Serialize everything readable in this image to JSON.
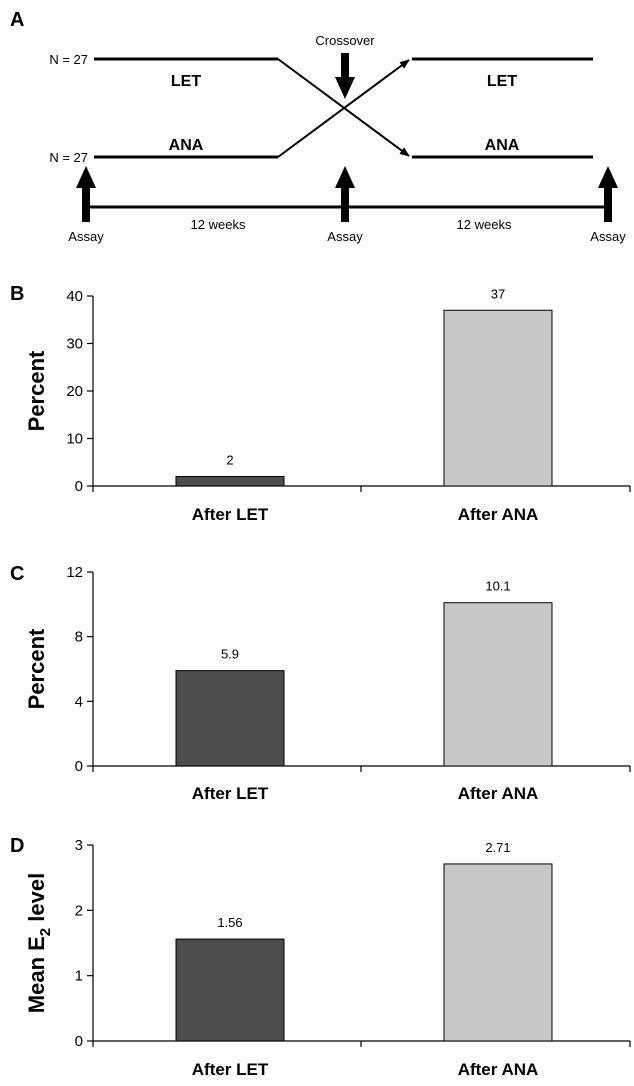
{
  "panel_a": {
    "letter": "A",
    "crossover_label": "Crossover",
    "n_top": "N = 27",
    "n_bottom": "N = 27",
    "arm_top_before": "LET",
    "arm_bottom_before": "ANA",
    "arm_top_after": "LET",
    "arm_bottom_after": "ANA",
    "period_1": "12 weeks",
    "period_2": "12 weeks",
    "assay_labels": [
      "Assay",
      "Assay",
      "Assay"
    ]
  },
  "chart_data": [
    {
      "panel": "B",
      "type": "bar",
      "categories": [
        "After LET",
        "After ANA"
      ],
      "values": [
        2,
        37
      ],
      "value_labels": [
        "2",
        "37"
      ],
      "ylabel": "Percent",
      "ylabel_sub": "",
      "ylabel_tail": "",
      "ylim": [
        0,
        40
      ],
      "yticks": [
        0,
        10,
        20,
        30,
        40
      ],
      "ytick_labels": [
        "0",
        "10",
        "20",
        "30",
        "40"
      ],
      "colors": [
        "#4d4d4d",
        "#c8c8c8"
      ],
      "grid": false
    },
    {
      "panel": "C",
      "type": "bar",
      "categories": [
        "After LET",
        "After ANA"
      ],
      "values": [
        5.9,
        10.1
      ],
      "value_labels": [
        "5.9",
        "10.1"
      ],
      "ylabel": "Percent",
      "ylabel_sub": "",
      "ylabel_tail": "",
      "ylim": [
        0,
        12
      ],
      "yticks": [
        0,
        4,
        8,
        12
      ],
      "ytick_labels": [
        "0",
        "4",
        "8",
        "12"
      ],
      "colors": [
        "#4d4d4d",
        "#c8c8c8"
      ],
      "grid": false
    },
    {
      "panel": "D",
      "type": "bar",
      "categories": [
        "After LET",
        "After ANA"
      ],
      "values": [
        1.56,
        2.71
      ],
      "value_labels": [
        "1.56",
        "2.71"
      ],
      "ylabel": "Mean E",
      "ylabel_sub": "2",
      "ylabel_tail": " level",
      "ylim": [
        0,
        3
      ],
      "yticks": [
        0,
        1,
        2,
        3
      ],
      "ytick_labels": [
        "0",
        "1",
        "2",
        "3"
      ],
      "colors": [
        "#4d4d4d",
        "#c8c8c8"
      ],
      "grid": false
    }
  ]
}
